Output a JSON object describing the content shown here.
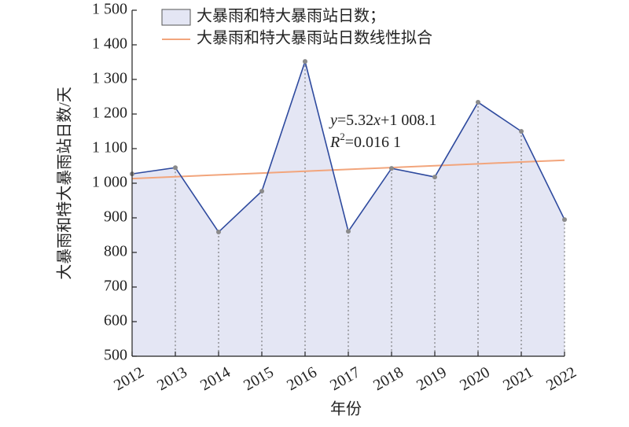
{
  "chart_data": {
    "type": "area",
    "x_label": "年份",
    "y_label": "大暴雨和特大暴雨站日数/天",
    "categories": [
      "2012",
      "2013",
      "2014",
      "2015",
      "2016",
      "2017",
      "2018",
      "2019",
      "2020",
      "2021",
      "2022"
    ],
    "series": [
      {
        "name": "大暴雨和特大暴雨站日数；",
        "color": "#2e4a9e",
        "fill": "#e4e6f4",
        "marker_color": "#8a8a8a",
        "values": [
          1027,
          1045,
          859,
          977,
          1352,
          861,
          1043,
          1018,
          1234,
          1150,
          895
        ]
      },
      {
        "name": "大暴雨和特大暴雨站日数线性拟合",
        "color": "#f2a57c",
        "type": "line",
        "values": [
          1013.4,
          1018.7,
          1024.1,
          1029.4,
          1034.7,
          1040.0,
          1045.3,
          1050.7,
          1056.0,
          1061.3,
          1066.6
        ]
      }
    ],
    "annotations": [
      [
        "y",
        "=5.32",
        "x",
        "+1 008.1"
      ],
      [
        "R",
        "2",
        "=0.016 1"
      ]
    ],
    "ylim": [
      500,
      1500
    ],
    "yticks": [
      500,
      600,
      700,
      800,
      900,
      {
        "value": 1000,
        "label": "1 000"
      },
      {
        "value": 1100,
        "label": "1 100"
      },
      {
        "value": 1200,
        "label": "1 200"
      },
      {
        "value": 1300,
        "label": "1 300"
      },
      {
        "value": 1400,
        "label": "1 400"
      },
      {
        "value": 1500,
        "label": "1 500"
      }
    ],
    "drop_lines": true
  }
}
